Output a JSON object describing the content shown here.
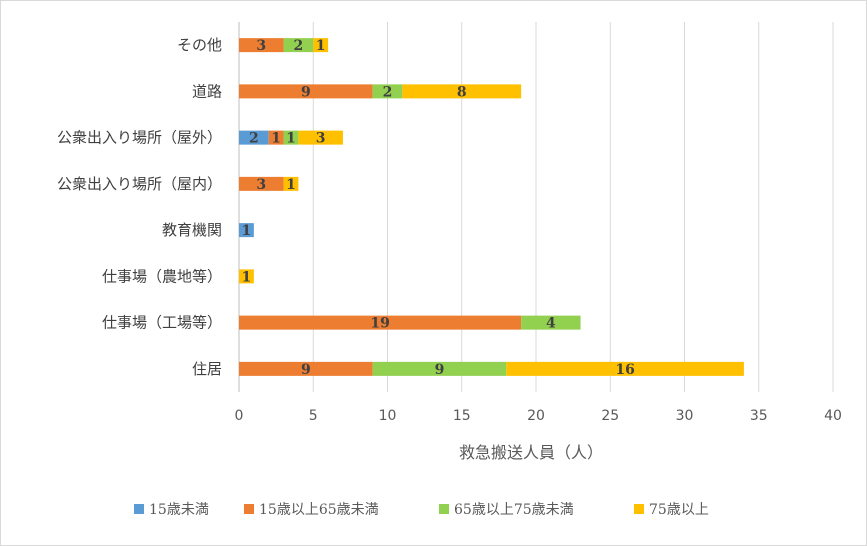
{
  "chart_data": {
    "type": "bar",
    "orientation": "horizontal",
    "stacked": true,
    "categories": [
      "その他",
      "道路",
      "公衆出入り場所（屋外）",
      "公衆出入り場所（屋内）",
      "教育機関",
      "仕事場（農地等）",
      "仕事場（工場等）",
      "住居"
    ],
    "series": [
      {
        "name": "15歳未満",
        "color": "#5b9bd5",
        "values": [
          0,
          0,
          2,
          0,
          1,
          0,
          0,
          0
        ]
      },
      {
        "name": "15歳以上65歳未満",
        "color": "#ed7d31",
        "values": [
          3,
          9,
          1,
          3,
          0,
          0,
          19,
          9
        ]
      },
      {
        "name": "65歳以上75歳未満",
        "color": "#92d050",
        "values": [
          2,
          2,
          1,
          0,
          0,
          0,
          4,
          9
        ]
      },
      {
        "name": "75歳以上",
        "color": "#ffc000",
        "values": [
          1,
          8,
          3,
          1,
          0,
          1,
          0,
          16
        ]
      }
    ],
    "xlabel": "救急搬送人員（人）",
    "ylabel": "",
    "xlim": [
      0,
      40
    ],
    "xticks": [
      0,
      5,
      10,
      15,
      20,
      25,
      30,
      35,
      40
    ],
    "grid": true,
    "legend_position": "bottom",
    "data_labels": true
  }
}
